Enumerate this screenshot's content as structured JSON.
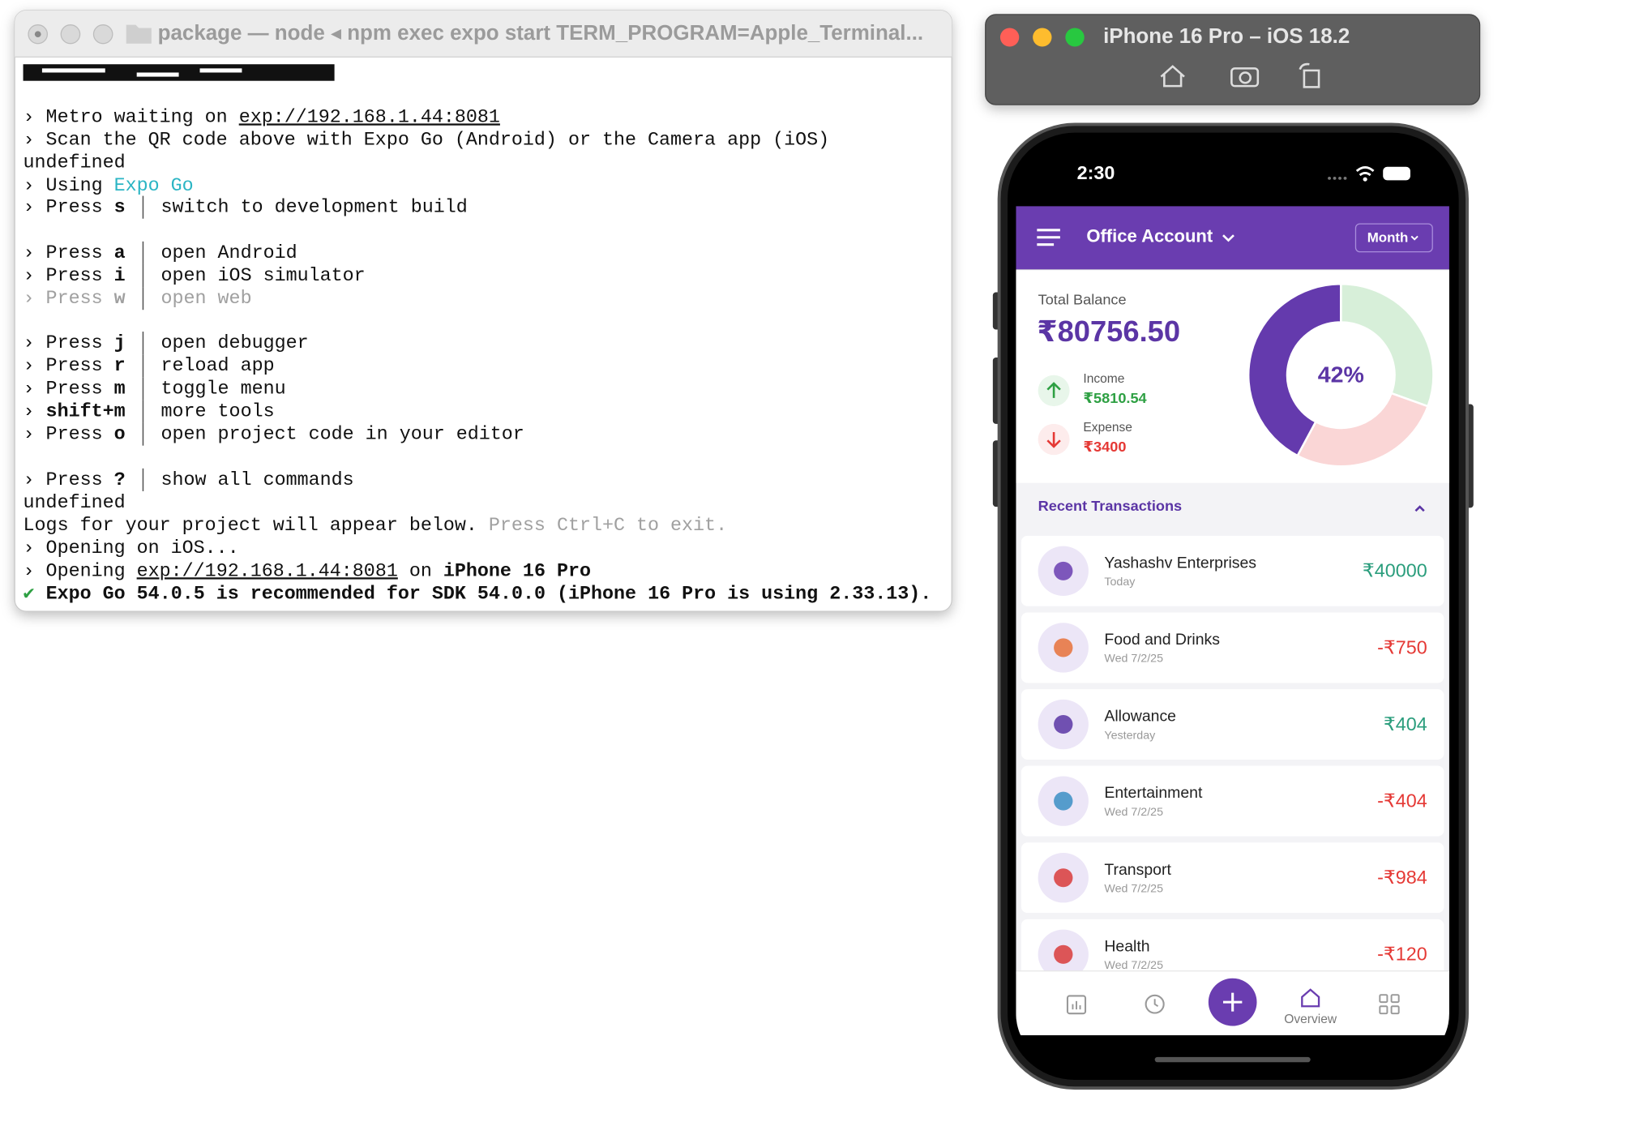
{
  "terminal": {
    "title": "package — node ◂ npm exec expo start TERM_PROGRAM=Apple_Terminal...",
    "lines": [
      [
        "› Metro waiting on ",
        "exp://192.168.1.44:8081"
      ],
      [
        "› Scan the QR code above with Expo Go (Android) or the Camera app (iOS)"
      ],
      [
        "undefined"
      ],
      [
        "› Using ",
        "Expo Go"
      ],
      [
        "› Press ",
        "s",
        "switch to development build"
      ],
      [
        "› Press ",
        "a",
        "open Android"
      ],
      [
        "› Press ",
        "i",
        "open iOS simulator"
      ],
      [
        "› Press ",
        "w",
        "open web"
      ],
      [
        "› Press ",
        "j",
        "open debugger"
      ],
      [
        "› Press ",
        "r",
        "reload app"
      ],
      [
        "› Press ",
        "m",
        "toggle menu"
      ],
      [
        "› ",
        "shift+m",
        "more tools"
      ],
      [
        "› Press ",
        "o",
        "open project code in your editor"
      ],
      [
        "› Press ",
        "?",
        "show all commands"
      ],
      [
        "undefined"
      ],
      [
        "Logs for your project will appear below. ",
        "Press Ctrl+C to exit."
      ],
      [
        "› Opening on iOS..."
      ],
      [
        "› Opening ",
        "exp://192.168.1.44:8081",
        " on ",
        "iPhone 16 Pro"
      ],
      [
        "✔",
        " Expo Go 54.0.5 is recommended for SDK 54.0.0 (iPhone 16 Pro is using 2.33.13)."
      ]
    ]
  },
  "simulator": {
    "title": "iPhone 16 Pro – iOS 18.2"
  },
  "app": {
    "status_time": "2:30",
    "account": "Office Account",
    "period": "Month",
    "balance_label": "Total Balance",
    "balance": "₹80756.50",
    "income_label": "Income",
    "income": "₹5810.54",
    "expense_label": "Expense",
    "expense": "₹3400",
    "donut_label": "42%",
    "recent_title": "Recent Transactions",
    "transactions": [
      {
        "name": "Yashashv Enterprises",
        "date": "Today",
        "amount": "₹40000"
      },
      {
        "name": "Food and Drinks",
        "date": "Wed 7/2/25",
        "amount": "-₹750"
      },
      {
        "name": "Allowance",
        "date": "Yesterday",
        "amount": "₹404"
      },
      {
        "name": "Entertainment",
        "date": "Wed 7/2/25",
        "amount": "-₹404"
      },
      {
        "name": "Transport",
        "date": "Wed 7/2/25",
        "amount": "-₹984"
      },
      {
        "name": "Health",
        "date": "Wed 7/2/25",
        "amount": "-₹120"
      }
    ],
    "nav_overview": "Overview"
  }
}
